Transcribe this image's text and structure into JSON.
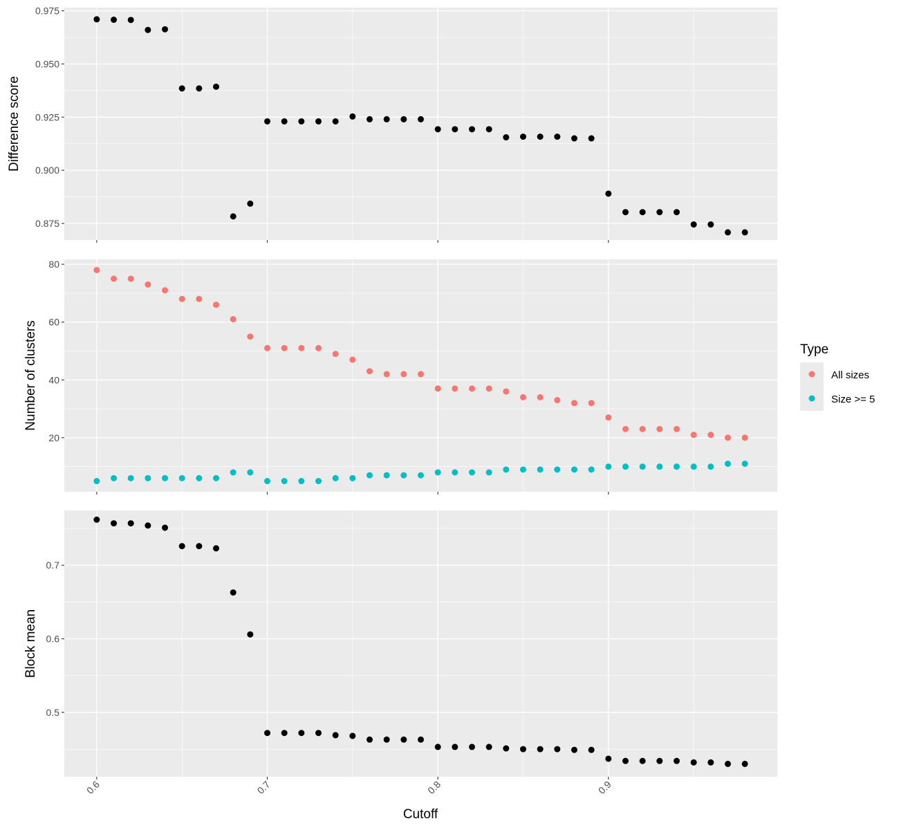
{
  "chart_data": {
    "type": "scatter",
    "layout": "faceted-vertical",
    "xlabel": "Cutoff",
    "x_ticks": [
      0.6,
      0.7,
      0.8,
      0.9
    ],
    "x_tick_labels": [
      "0.6",
      "0.7",
      "0.8",
      "0.9"
    ],
    "xlim": [
      0.581,
      0.999
    ],
    "x": [
      0.6,
      0.61,
      0.62,
      0.63,
      0.64,
      0.65,
      0.66,
      0.67,
      0.68,
      0.69,
      0.7,
      0.71,
      0.72,
      0.73,
      0.74,
      0.75,
      0.76,
      0.77,
      0.78,
      0.79,
      0.8,
      0.81,
      0.82,
      0.83,
      0.84,
      0.85,
      0.86,
      0.87,
      0.88,
      0.89,
      0.9,
      0.91,
      0.92,
      0.93,
      0.94,
      0.95,
      0.96,
      0.97,
      0.98
    ],
    "background": "#ebebeb",
    "grid": true,
    "legend": {
      "title": "Type",
      "position": "right",
      "entries": [
        {
          "label": "All sizes",
          "color": "#f8766d"
        },
        {
          "label": "Size >= 5",
          "color": "#00bfc4"
        }
      ]
    },
    "panels": [
      {
        "ylabel": "Difference score",
        "ylim": [
          0.8672,
          0.9765
        ],
        "y_ticks": [
          0.875,
          0.9,
          0.925,
          0.95,
          0.975
        ],
        "y_tick_labels": [
          "0.875",
          "0.900",
          "0.925",
          "0.950",
          "0.975"
        ],
        "series": [
          {
            "color": "#000000",
            "values": [
              0.971,
              0.9708,
              0.9707,
              0.966,
              0.9663,
              0.9385,
              0.9385,
              0.9393,
              0.8783,
              0.8843,
              0.923,
              0.923,
              0.923,
              0.923,
              0.923,
              0.9253,
              0.924,
              0.924,
              0.924,
              0.924,
              0.9193,
              0.9193,
              0.9193,
              0.9193,
              0.9155,
              0.9158,
              0.9158,
              0.9158,
              0.915,
              0.915,
              0.889,
              0.8803,
              0.8803,
              0.8803,
              0.8803,
              0.8745,
              0.8745,
              0.8708,
              0.8708
            ]
          }
        ]
      },
      {
        "ylabel": "Number of clusters",
        "ylim": [
          1.3,
          81.7
        ],
        "y_ticks": [
          20,
          40,
          60,
          80
        ],
        "y_tick_labels": [
          "20",
          "40",
          "60",
          "80"
        ],
        "series": [
          {
            "name": "All sizes",
            "color": "#f8766d",
            "values": [
              78,
              75,
              75,
              73,
              71,
              68,
              68,
              66,
              61,
              55,
              51,
              51,
              51,
              51,
              49,
              47,
              43,
              42,
              42,
              42,
              37,
              37,
              37,
              37,
              36,
              34,
              34,
              33,
              32,
              32,
              27,
              23,
              23,
              23,
              23,
              21,
              21,
              20,
              20
            ]
          },
          {
            "name": "Size >= 5",
            "color": "#00bfc4",
            "values": [
              5,
              6,
              6,
              6,
              6,
              6,
              6,
              6,
              8,
              8,
              5,
              5,
              5,
              5,
              6,
              6,
              7,
              7,
              7,
              7,
              8,
              8,
              8,
              8,
              9,
              9,
              9,
              9,
              9,
              9,
              10,
              10,
              10,
              10,
              10,
              10,
              10,
              11,
              11
            ]
          }
        ]
      },
      {
        "ylabel": "Block mean",
        "ylim": [
          0.4125,
          0.7745
        ],
        "y_ticks": [
          0.5,
          0.6,
          0.7
        ],
        "y_tick_labels": [
          "0.5",
          "0.6",
          "0.7"
        ],
        "series": [
          {
            "color": "#000000",
            "values": [
              0.762,
              0.757,
              0.757,
              0.754,
              0.751,
              0.726,
              0.726,
              0.723,
              0.663,
              0.606,
              0.472,
              0.472,
              0.472,
              0.472,
              0.469,
              0.468,
              0.463,
              0.463,
              0.463,
              0.463,
              0.453,
              0.453,
              0.453,
              0.453,
              0.451,
              0.45,
              0.45,
              0.45,
              0.449,
              0.449,
              0.437,
              0.434,
              0.434,
              0.434,
              0.434,
              0.432,
              0.432,
              0.43,
              0.43
            ]
          }
        ]
      }
    ]
  }
}
